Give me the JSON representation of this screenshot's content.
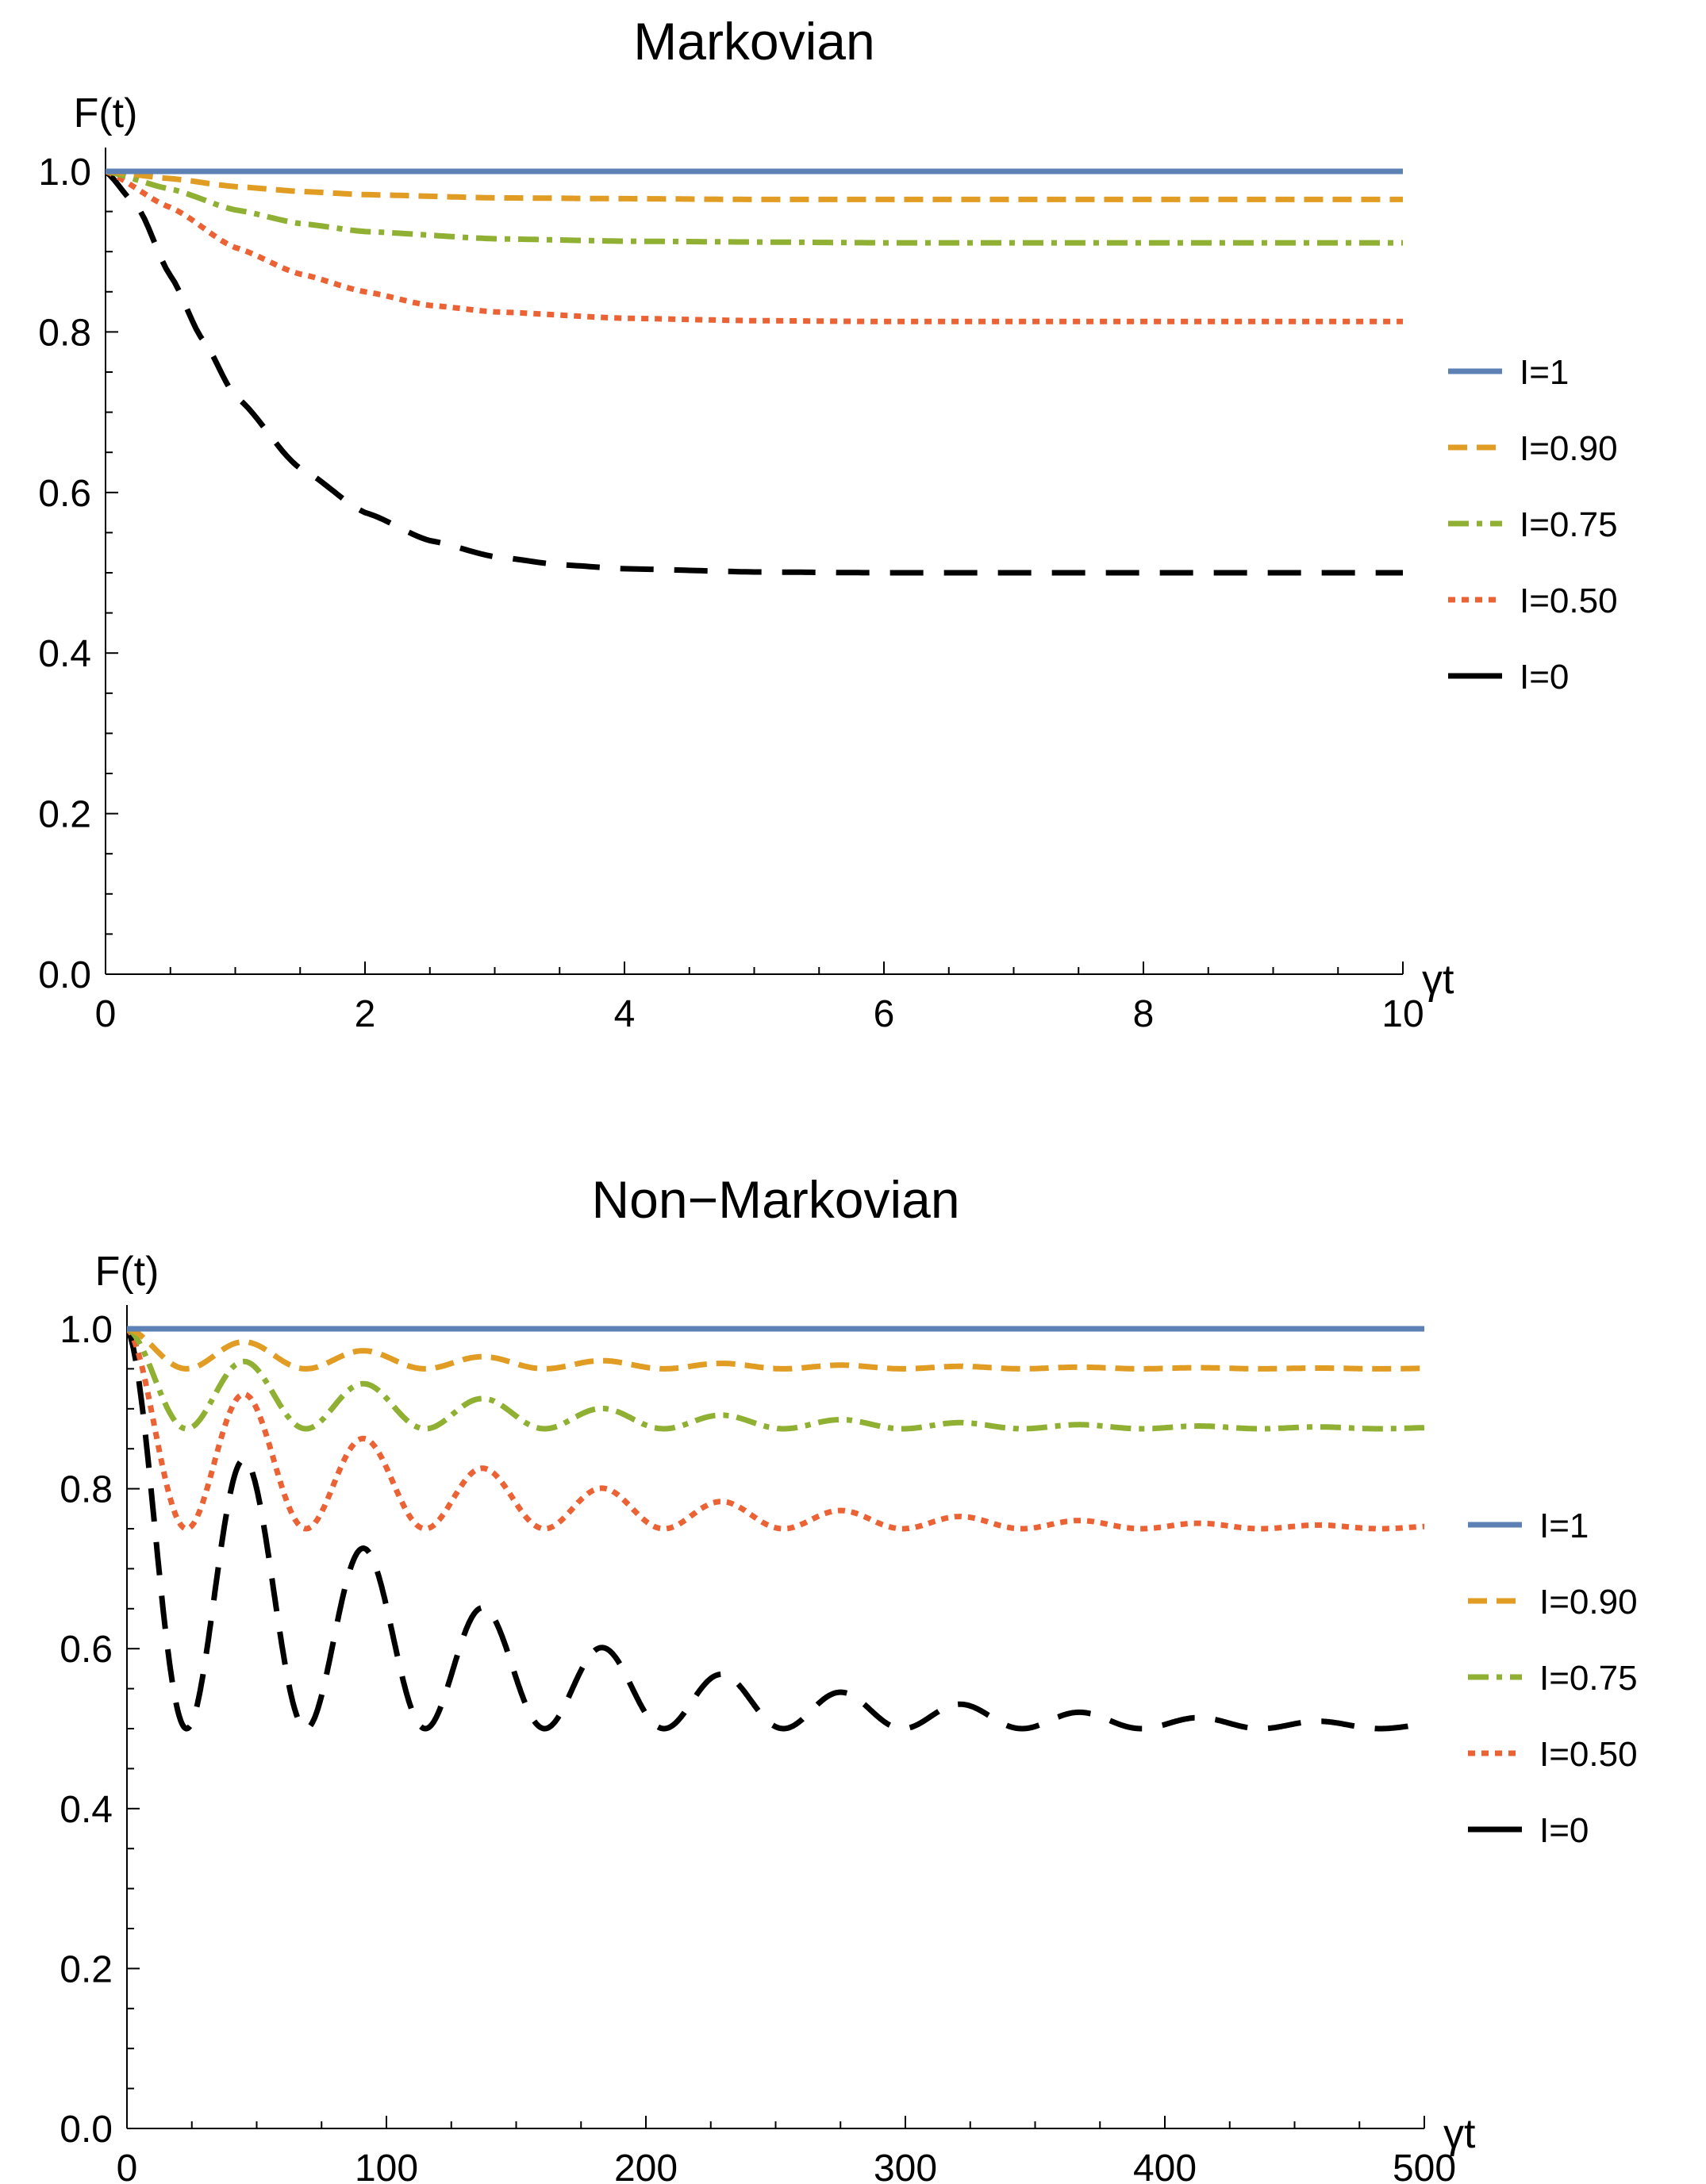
{
  "chart_data": [
    {
      "type": "line",
      "title": "Markovian",
      "ylabel": "F(t)",
      "xlabel": "γt",
      "xlim": [
        0,
        10
      ],
      "ylim": [
        0,
        1
      ],
      "xticks": [
        0,
        2,
        4,
        6,
        8,
        10
      ],
      "yticks": [
        0.0,
        0.2,
        0.4,
        0.6,
        0.8,
        1.0
      ],
      "ytick_labels": [
        "0.0",
        "0.2",
        "0.4",
        "0.6",
        "0.8",
        "1.0"
      ],
      "legend_position": "right",
      "series": [
        {
          "name": "I=1",
          "color": "#5e81b5",
          "style": "solid",
          "x": [
            0,
            10
          ],
          "y": [
            1.0,
            1.0
          ]
        },
        {
          "name": "I=0.90",
          "color": "#e19c24",
          "style": "dashed",
          "x": [
            0,
            0.5,
            1,
            1.5,
            2,
            3,
            4,
            5,
            6,
            8,
            10
          ],
          "y": [
            1.0,
            0.991,
            0.981,
            0.975,
            0.971,
            0.967,
            0.966,
            0.965,
            0.965,
            0.965,
            0.965
          ]
        },
        {
          "name": "I=0.75",
          "color": "#8fb032",
          "style": "dashdot",
          "x": [
            0,
            0.5,
            1,
            1.5,
            2,
            3,
            4,
            5,
            6,
            8,
            10
          ],
          "y": [
            1.0,
            0.978,
            0.952,
            0.935,
            0.925,
            0.916,
            0.913,
            0.912,
            0.911,
            0.911,
            0.911
          ]
        },
        {
          "name": "I=0.50",
          "color": "#eb6235",
          "style": "dotted",
          "x": [
            0,
            0.5,
            1,
            1.5,
            2,
            2.5,
            3,
            4,
            5,
            6,
            8,
            10
          ],
          "y": [
            1.0,
            0.955,
            0.905,
            0.872,
            0.85,
            0.833,
            0.825,
            0.817,
            0.814,
            0.813,
            0.813,
            0.813
          ]
        },
        {
          "name": "I=0",
          "color": "#000000",
          "style": "longdash",
          "x": [
            0,
            0.25,
            0.5,
            0.75,
            1,
            1.5,
            2,
            2.5,
            3,
            3.5,
            4,
            5,
            6,
            8,
            10
          ],
          "y": [
            1.0,
            0.955,
            0.87,
            0.79,
            0.72,
            0.63,
            0.575,
            0.54,
            0.52,
            0.51,
            0.505,
            0.501,
            0.5,
            0.5,
            0.5
          ]
        }
      ]
    },
    {
      "type": "line",
      "title": "Non−Markovian",
      "ylabel": "F(t)",
      "xlabel": "γt",
      "xlim": [
        0,
        500
      ],
      "ylim": [
        0,
        1
      ],
      "xticks": [
        0,
        100,
        200,
        300,
        400,
        500
      ],
      "yticks": [
        0.0,
        0.2,
        0.4,
        0.6,
        0.8,
        1.0
      ],
      "ytick_labels": [
        "0.0",
        "0.2",
        "0.4",
        "0.6",
        "0.8",
        "1.0"
      ],
      "legend_position": "right",
      "oscillation": {
        "first_minimum": 23,
        "period": 44.8,
        "decay": 115
      },
      "series": [
        {
          "name": "I=1",
          "color": "#5e81b5",
          "style": "solid",
          "I": 1
        },
        {
          "name": "I=0.90",
          "color": "#e19c24",
          "style": "dashed",
          "I": 0.9
        },
        {
          "name": "I=0.75",
          "color": "#8fb032",
          "style": "dashdot",
          "I": 0.75
        },
        {
          "name": "I=0.50",
          "color": "#eb6235",
          "style": "dotted",
          "I": 0.5
        },
        {
          "name": "I=0",
          "color": "#000000",
          "style": "longdash",
          "I": 0
        }
      ]
    }
  ]
}
